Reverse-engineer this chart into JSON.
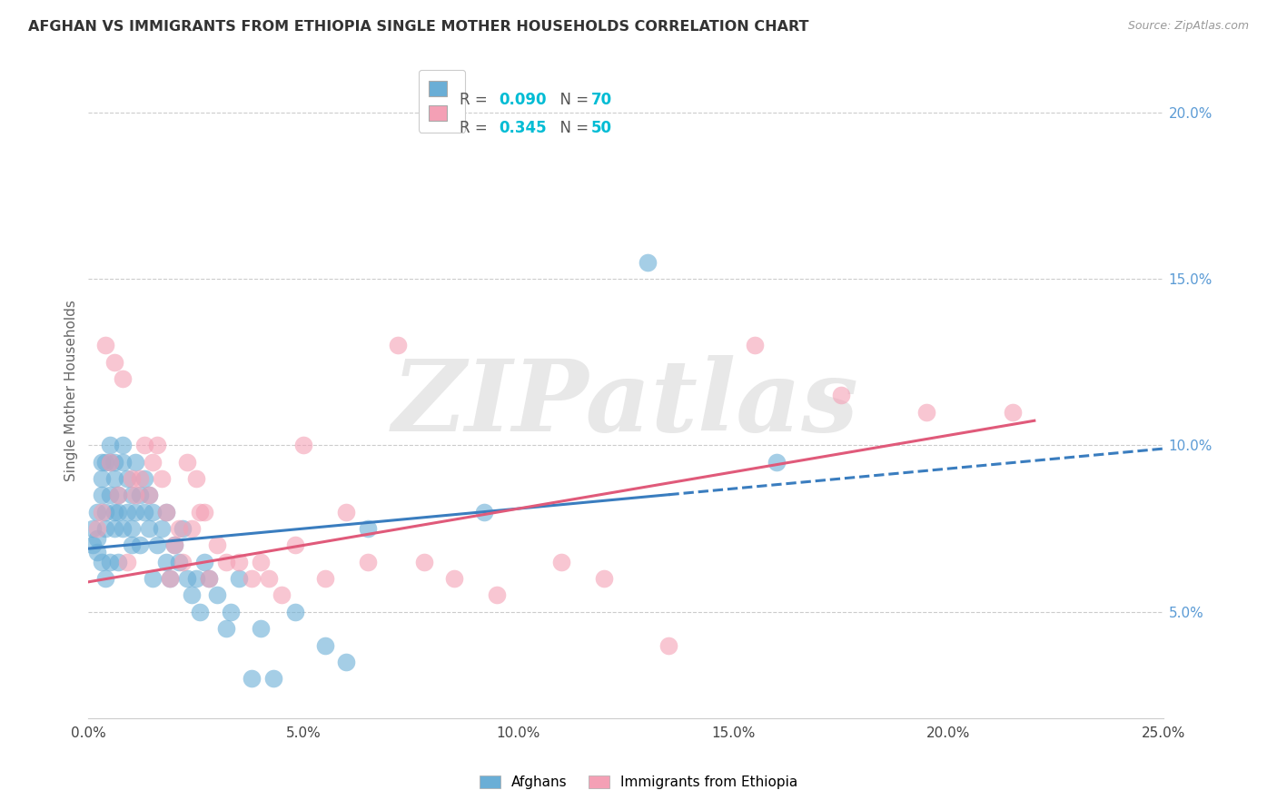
{
  "title": "AFGHAN VS IMMIGRANTS FROM ETHIOPIA SINGLE MOTHER HOUSEHOLDS CORRELATION CHART",
  "source": "Source: ZipAtlas.com",
  "ylabel": "Single Mother Households",
  "xlabel": "",
  "xlim": [
    0.0,
    0.25
  ],
  "ylim": [
    0.018,
    0.215
  ],
  "xtick_labels": [
    "0.0%",
    "5.0%",
    "10.0%",
    "15.0%",
    "20.0%",
    "25.0%"
  ],
  "xtick_vals": [
    0.0,
    0.05,
    0.1,
    0.15,
    0.2,
    0.25
  ],
  "ytick_labels": [
    "5.0%",
    "10.0%",
    "15.0%",
    "20.0%"
  ],
  "ytick_vals": [
    0.05,
    0.1,
    0.15,
    0.2
  ],
  "R_afghan": 0.09,
  "N_afghan": 70,
  "R_ethiopia": 0.345,
  "N_ethiopia": 50,
  "color_afghan": "#6aaed6",
  "color_ethiopia": "#f4a0b5",
  "color_line_afghan": "#3a7dbf",
  "color_line_ethiopia": "#e05a7a",
  "color_legend_val": "#00bcd4",
  "watermark_text": "ZIPatlas",
  "background_color": "#ffffff",
  "grid_color": "#cccccc",
  "title_color": "#333333",
  "source_color": "#999999",
  "right_axis_color": "#5b9bd5",
  "afghan_line_solid_end": 0.135,
  "afghan_line_dash_end": 0.25,
  "ethiopia_line_end": 0.22,
  "afghan_line_intercept": 0.069,
  "afghan_line_slope": 0.12,
  "ethiopia_line_intercept": 0.059,
  "ethiopia_line_slope": 0.22,
  "afghan_x": [
    0.001,
    0.001,
    0.002,
    0.002,
    0.002,
    0.003,
    0.003,
    0.003,
    0.003,
    0.004,
    0.004,
    0.004,
    0.004,
    0.005,
    0.005,
    0.005,
    0.005,
    0.006,
    0.006,
    0.006,
    0.006,
    0.007,
    0.007,
    0.007,
    0.008,
    0.008,
    0.008,
    0.009,
    0.009,
    0.01,
    0.01,
    0.01,
    0.011,
    0.011,
    0.012,
    0.012,
    0.013,
    0.013,
    0.014,
    0.014,
    0.015,
    0.015,
    0.016,
    0.017,
    0.018,
    0.018,
    0.019,
    0.02,
    0.021,
    0.022,
    0.023,
    0.024,
    0.025,
    0.026,
    0.027,
    0.028,
    0.03,
    0.032,
    0.033,
    0.035,
    0.038,
    0.04,
    0.043,
    0.048,
    0.055,
    0.06,
    0.065,
    0.092,
    0.13,
    0.16
  ],
  "afghan_y": [
    0.07,
    0.075,
    0.068,
    0.08,
    0.072,
    0.065,
    0.095,
    0.085,
    0.09,
    0.06,
    0.075,
    0.08,
    0.095,
    0.065,
    0.085,
    0.1,
    0.095,
    0.08,
    0.09,
    0.075,
    0.095,
    0.065,
    0.08,
    0.085,
    0.075,
    0.095,
    0.1,
    0.08,
    0.09,
    0.085,
    0.07,
    0.075,
    0.08,
    0.095,
    0.07,
    0.085,
    0.09,
    0.08,
    0.075,
    0.085,
    0.06,
    0.08,
    0.07,
    0.075,
    0.065,
    0.08,
    0.06,
    0.07,
    0.065,
    0.075,
    0.06,
    0.055,
    0.06,
    0.05,
    0.065,
    0.06,
    0.055,
    0.045,
    0.05,
    0.06,
    0.03,
    0.045,
    0.03,
    0.05,
    0.04,
    0.035,
    0.075,
    0.08,
    0.155,
    0.095
  ],
  "ethiopia_x": [
    0.002,
    0.003,
    0.004,
    0.005,
    0.006,
    0.007,
    0.008,
    0.009,
    0.01,
    0.011,
    0.012,
    0.013,
    0.014,
    0.015,
    0.016,
    0.017,
    0.018,
    0.019,
    0.02,
    0.021,
    0.022,
    0.023,
    0.024,
    0.025,
    0.026,
    0.027,
    0.028,
    0.03,
    0.032,
    0.035,
    0.038,
    0.04,
    0.042,
    0.045,
    0.048,
    0.05,
    0.055,
    0.06,
    0.065,
    0.072,
    0.078,
    0.085,
    0.095,
    0.11,
    0.12,
    0.135,
    0.155,
    0.175,
    0.195,
    0.215
  ],
  "ethiopia_y": [
    0.075,
    0.08,
    0.13,
    0.095,
    0.125,
    0.085,
    0.12,
    0.065,
    0.09,
    0.085,
    0.09,
    0.1,
    0.085,
    0.095,
    0.1,
    0.09,
    0.08,
    0.06,
    0.07,
    0.075,
    0.065,
    0.095,
    0.075,
    0.09,
    0.08,
    0.08,
    0.06,
    0.07,
    0.065,
    0.065,
    0.06,
    0.065,
    0.06,
    0.055,
    0.07,
    0.1,
    0.06,
    0.08,
    0.065,
    0.13,
    0.065,
    0.06,
    0.055,
    0.065,
    0.06,
    0.04,
    0.13,
    0.115,
    0.11,
    0.11
  ]
}
